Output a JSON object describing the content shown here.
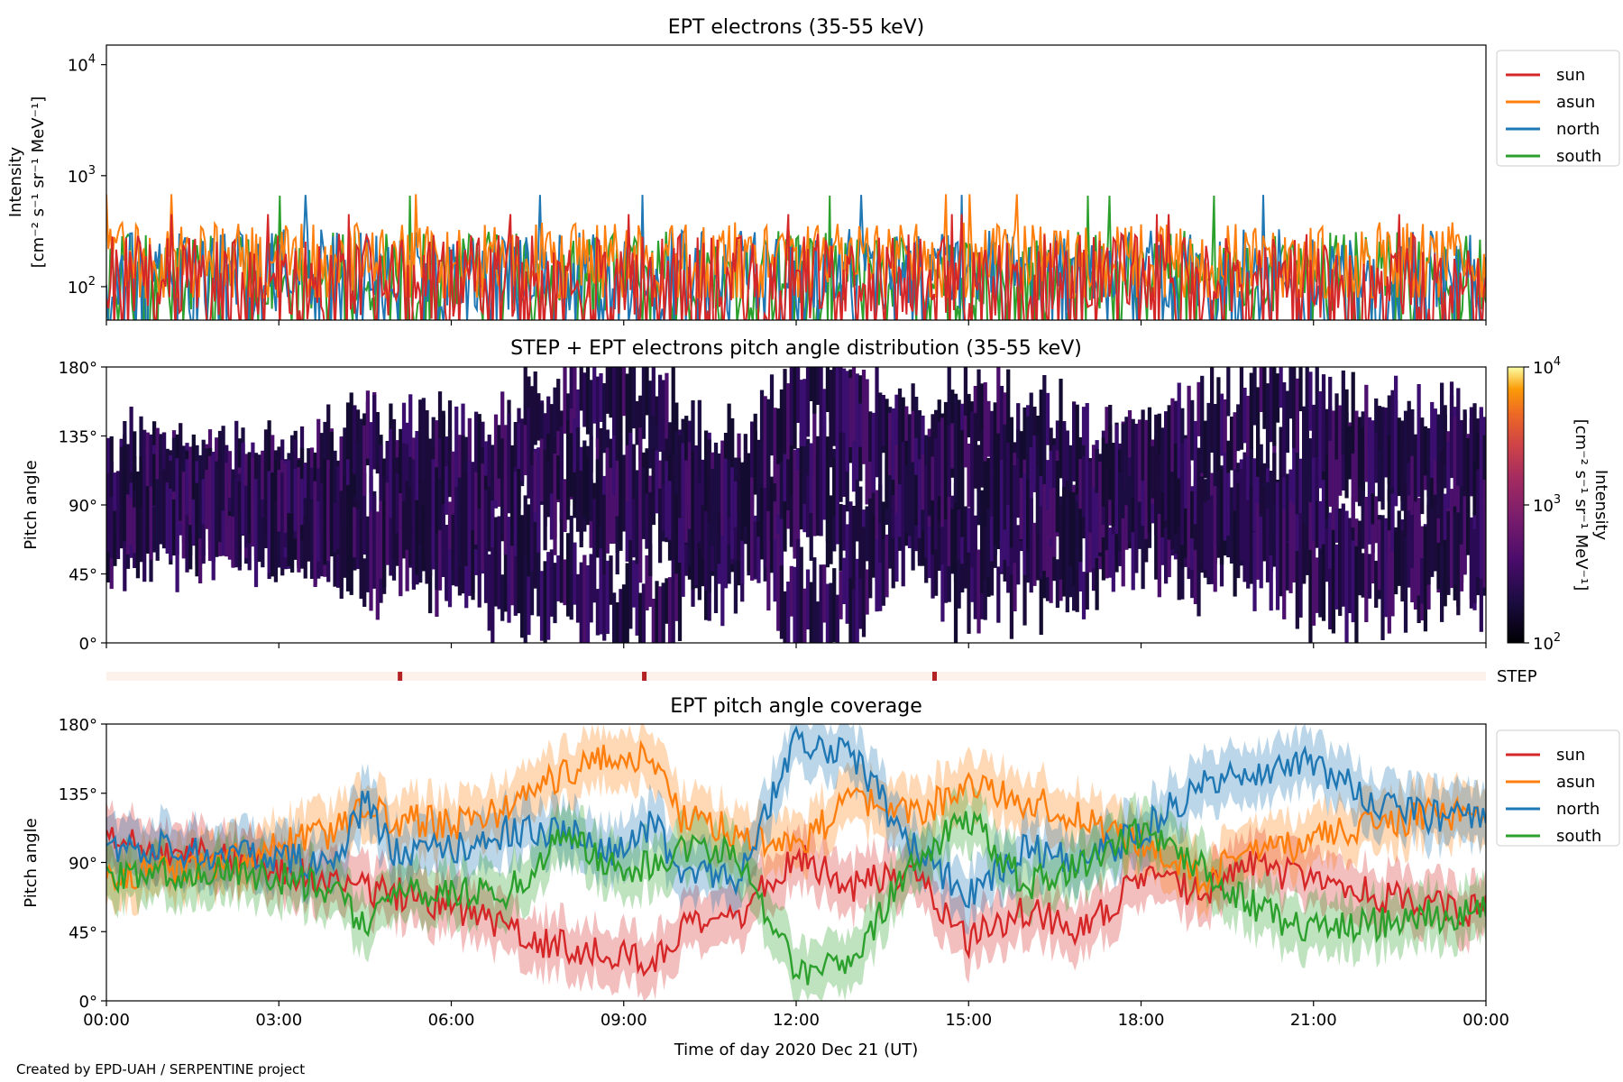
{
  "figure": {
    "footer": "Created by EPD-UAH / SERPENTINE project"
  },
  "chart_data": [
    {
      "type": "line",
      "title": "EPT electrons (35-55 keV)",
      "ylabel_line1": "Intensity",
      "ylabel_line2": "[cm⁻² s⁻¹ sr⁻¹ MeV⁻¹]",
      "yscale": "log",
      "ylim": [
        50,
        15000
      ],
      "yticks": [
        {
          "value": 100,
          "mantissa": "10",
          "exp": "2"
        },
        {
          "value": 1000,
          "mantissa": "10",
          "exp": "3"
        },
        {
          "value": 10000,
          "mantissa": "10",
          "exp": "4"
        }
      ],
      "xlim": [
        "2020-12-21T00:00",
        "2020-12-22T00:00"
      ],
      "legend": "top-right outside",
      "series": [
        {
          "name": "sun",
          "color": "#d62728",
          "typical_range": [
            50,
            300
          ],
          "peak": 450
        },
        {
          "name": "asun",
          "color": "#ff7f0e",
          "typical_range": [
            100,
            380
          ],
          "peak": 680
        },
        {
          "name": "north",
          "color": "#1f77b4",
          "typical_range": [
            60,
            330
          ],
          "peak": 670
        },
        {
          "name": "south",
          "color": "#2ca02c",
          "typical_range": [
            60,
            320
          ],
          "peak": 660
        }
      ]
    },
    {
      "type": "heatmap",
      "title": "STEP + EPT electrons pitch angle distribution (35-55 keV)",
      "ylabel": "Pitch angle",
      "ylim": [
        0,
        180
      ],
      "yticks": [
        "0°",
        "45°",
        "90°",
        "135°",
        "180°"
      ],
      "colorbar": {
        "label_line1": "Intensity",
        "label_line2": "[cm⁻² s⁻¹ sr⁻¹ MeV⁻¹]",
        "scale": "log",
        "range": [
          100,
          10000
        ],
        "ticks": [
          {
            "mantissa": "10",
            "exp": "2"
          },
          {
            "mantissa": "10",
            "exp": "3"
          },
          {
            "mantissa": "10",
            "exp": "4"
          }
        ],
        "colormap": "inferno"
      }
    },
    {
      "type": "bar",
      "label": "STEP",
      "color_background": "#fdf1ec",
      "color_marks": "#b22222",
      "marks_hours": [
        5.1,
        9.35,
        14.4
      ]
    },
    {
      "type": "area",
      "title": "EPT pitch angle coverage",
      "ylabel": "Pitch angle",
      "ylim": [
        0,
        180
      ],
      "yticks": [
        "0°",
        "45°",
        "90°",
        "135°",
        "180°"
      ],
      "xlabel": "Time of day 2020 Dec 21 (UT)",
      "xticks": [
        "00:00",
        "03:00",
        "06:00",
        "09:00",
        "12:00",
        "15:00",
        "18:00",
        "21:00",
        "00:00"
      ],
      "legend": "top-right outside",
      "series": [
        {
          "name": "sun",
          "color": "#d62728",
          "x_hours": [
            0,
            1,
            2,
            3,
            4,
            4.5,
            5,
            6,
            7,
            8,
            9,
            9.5,
            10,
            11,
            12,
            13,
            14,
            15,
            16,
            17,
            18,
            19,
            20,
            21,
            22,
            23,
            24
          ],
          "pitch_deg": [
            103,
            98,
            95,
            85,
            78,
            72,
            70,
            62,
            45,
            35,
            30,
            25,
            45,
            55,
            95,
            75,
            85,
            40,
            60,
            45,
            80,
            70,
            90,
            75,
            70,
            62,
            58
          ]
        },
        {
          "name": "asun",
          "color": "#ff7f0e",
          "x_hours": [
            0,
            1,
            2,
            3,
            4,
            4.5,
            5,
            6,
            7,
            8,
            9,
            9.5,
            10,
            11,
            12,
            13,
            14,
            15,
            16,
            17,
            18,
            19,
            20,
            21,
            22,
            23,
            24
          ],
          "pitch_deg": [
            80,
            85,
            90,
            100,
            110,
            125,
            118,
            115,
            125,
            150,
            160,
            155,
            120,
            110,
            100,
            130,
            120,
            140,
            130,
            120,
            100,
            80,
            95,
            105,
            115,
            120,
            123
          ]
        },
        {
          "name": "north",
          "color": "#1f77b4",
          "x_hours": [
            0,
            1,
            2,
            3,
            4,
            4.5,
            5,
            6,
            7,
            8,
            9,
            9.5,
            10,
            11,
            12,
            13,
            14,
            15,
            16,
            17,
            18,
            19,
            20,
            21,
            22,
            23,
            24
          ],
          "pitch_deg": [
            98,
            100,
            95,
            92,
            90,
            130,
            95,
            100,
            110,
            110,
            95,
            115,
            85,
            80,
            170,
            160,
            100,
            70,
            100,
            90,
            110,
            140,
            150,
            155,
            130,
            120,
            118
          ]
        },
        {
          "name": "south",
          "color": "#2ca02c",
          "x_hours": [
            0,
            1,
            2,
            3,
            4,
            4.5,
            5,
            6,
            7,
            8,
            9,
            9.5,
            10,
            11,
            12,
            13,
            14,
            15,
            16,
            17,
            18,
            19,
            20,
            21,
            22,
            23,
            24
          ],
          "pitch_deg": [
            80,
            82,
            85,
            80,
            72,
            45,
            75,
            70,
            70,
            110,
            80,
            90,
            100,
            95,
            20,
            25,
            90,
            120,
            75,
            90,
            110,
            90,
            60,
            45,
            50,
            55,
            60
          ]
        }
      ]
    }
  ]
}
